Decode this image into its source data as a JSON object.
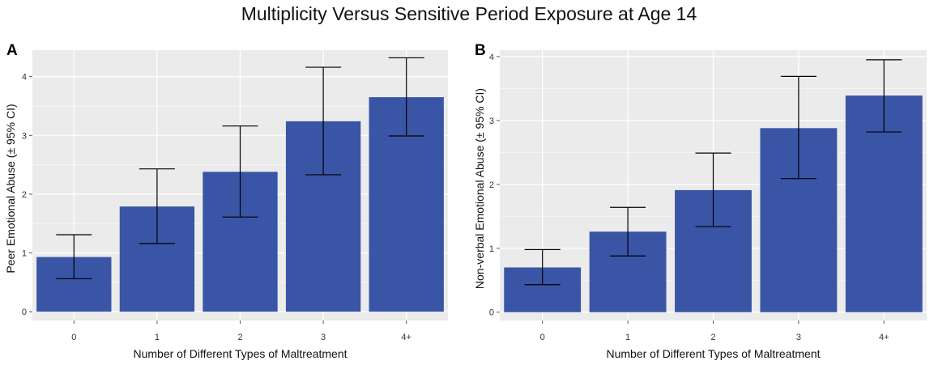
{
  "title": "Multiplicity Versus Sensitive Period Exposure at Age 14",
  "colors": {
    "bar": "#3a55a6",
    "panel_bg": "#ebebeb",
    "grid": "#f6f6f6",
    "error": "#000000"
  },
  "chart_data": [
    {
      "panel": "A",
      "type": "bar",
      "categories": [
        "0",
        "1",
        "2",
        "3",
        "4+"
      ],
      "values": [
        0.93,
        1.79,
        2.38,
        3.24,
        3.65
      ],
      "ci_low": [
        0.56,
        1.16,
        1.61,
        2.33,
        2.99
      ],
      "ci_high": [
        1.31,
        2.43,
        3.16,
        4.16,
        4.32
      ],
      "xlabel": "Number of Different Types of Maltreatment",
      "ylabel": "Peer Emotional Abuse (± 95% CI)",
      "ylim": [
        -0.15,
        4.45
      ],
      "yticks": [
        "0",
        "1",
        "2",
        "3",
        "4"
      ]
    },
    {
      "panel": "B",
      "type": "bar",
      "categories": [
        "0",
        "1",
        "2",
        "3",
        "4+"
      ],
      "values": [
        0.7,
        1.26,
        1.91,
        2.88,
        3.39
      ],
      "ci_low": [
        0.43,
        0.88,
        1.34,
        2.09,
        2.82
      ],
      "ci_high": [
        0.98,
        1.64,
        2.49,
        3.69,
        3.95
      ],
      "xlabel": "Number of Different Types of Maltreatment",
      "ylabel": "Non-verbal Emotional Abuse (± 95% CI)",
      "ylim": [
        -0.13,
        4.1
      ],
      "yticks": [
        "0",
        "1",
        "2",
        "3",
        "4"
      ]
    }
  ]
}
